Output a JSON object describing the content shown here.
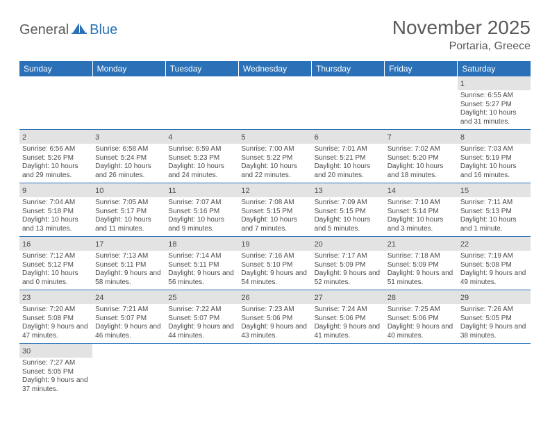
{
  "logo": {
    "part1": "General",
    "part2": "Blue"
  },
  "title": "November 2025",
  "location": "Portaria, Greece",
  "colors": {
    "header_bg": "#2a71b8",
    "header_text": "#ffffff",
    "daynum_bg": "#e3e3e3",
    "cell_border": "#2a71b8",
    "text": "#4a4a4a",
    "title_text": "#5a5a5a"
  },
  "weekdays": [
    "Sunday",
    "Monday",
    "Tuesday",
    "Wednesday",
    "Thursday",
    "Friday",
    "Saturday"
  ],
  "days": [
    {
      "n": 1,
      "sr": "6:55 AM",
      "ss": "5:27 PM",
      "dl": "10 hours and 31 minutes."
    },
    {
      "n": 2,
      "sr": "6:56 AM",
      "ss": "5:26 PM",
      "dl": "10 hours and 29 minutes."
    },
    {
      "n": 3,
      "sr": "6:58 AM",
      "ss": "5:24 PM",
      "dl": "10 hours and 26 minutes."
    },
    {
      "n": 4,
      "sr": "6:59 AM",
      "ss": "5:23 PM",
      "dl": "10 hours and 24 minutes."
    },
    {
      "n": 5,
      "sr": "7:00 AM",
      "ss": "5:22 PM",
      "dl": "10 hours and 22 minutes."
    },
    {
      "n": 6,
      "sr": "7:01 AM",
      "ss": "5:21 PM",
      "dl": "10 hours and 20 minutes."
    },
    {
      "n": 7,
      "sr": "7:02 AM",
      "ss": "5:20 PM",
      "dl": "10 hours and 18 minutes."
    },
    {
      "n": 8,
      "sr": "7:03 AM",
      "ss": "5:19 PM",
      "dl": "10 hours and 16 minutes."
    },
    {
      "n": 9,
      "sr": "7:04 AM",
      "ss": "5:18 PM",
      "dl": "10 hours and 13 minutes."
    },
    {
      "n": 10,
      "sr": "7:05 AM",
      "ss": "5:17 PM",
      "dl": "10 hours and 11 minutes."
    },
    {
      "n": 11,
      "sr": "7:07 AM",
      "ss": "5:16 PM",
      "dl": "10 hours and 9 minutes."
    },
    {
      "n": 12,
      "sr": "7:08 AM",
      "ss": "5:15 PM",
      "dl": "10 hours and 7 minutes."
    },
    {
      "n": 13,
      "sr": "7:09 AM",
      "ss": "5:15 PM",
      "dl": "10 hours and 5 minutes."
    },
    {
      "n": 14,
      "sr": "7:10 AM",
      "ss": "5:14 PM",
      "dl": "10 hours and 3 minutes."
    },
    {
      "n": 15,
      "sr": "7:11 AM",
      "ss": "5:13 PM",
      "dl": "10 hours and 1 minute."
    },
    {
      "n": 16,
      "sr": "7:12 AM",
      "ss": "5:12 PM",
      "dl": "10 hours and 0 minutes."
    },
    {
      "n": 17,
      "sr": "7:13 AM",
      "ss": "5:11 PM",
      "dl": "9 hours and 58 minutes."
    },
    {
      "n": 18,
      "sr": "7:14 AM",
      "ss": "5:11 PM",
      "dl": "9 hours and 56 minutes."
    },
    {
      "n": 19,
      "sr": "7:16 AM",
      "ss": "5:10 PM",
      "dl": "9 hours and 54 minutes."
    },
    {
      "n": 20,
      "sr": "7:17 AM",
      "ss": "5:09 PM",
      "dl": "9 hours and 52 minutes."
    },
    {
      "n": 21,
      "sr": "7:18 AM",
      "ss": "5:09 PM",
      "dl": "9 hours and 51 minutes."
    },
    {
      "n": 22,
      "sr": "7:19 AM",
      "ss": "5:08 PM",
      "dl": "9 hours and 49 minutes."
    },
    {
      "n": 23,
      "sr": "7:20 AM",
      "ss": "5:08 PM",
      "dl": "9 hours and 47 minutes."
    },
    {
      "n": 24,
      "sr": "7:21 AM",
      "ss": "5:07 PM",
      "dl": "9 hours and 46 minutes."
    },
    {
      "n": 25,
      "sr": "7:22 AM",
      "ss": "5:07 PM",
      "dl": "9 hours and 44 minutes."
    },
    {
      "n": 26,
      "sr": "7:23 AM",
      "ss": "5:06 PM",
      "dl": "9 hours and 43 minutes."
    },
    {
      "n": 27,
      "sr": "7:24 AM",
      "ss": "5:06 PM",
      "dl": "9 hours and 41 minutes."
    },
    {
      "n": 28,
      "sr": "7:25 AM",
      "ss": "5:06 PM",
      "dl": "9 hours and 40 minutes."
    },
    {
      "n": 29,
      "sr": "7:26 AM",
      "ss": "5:05 PM",
      "dl": "9 hours and 38 minutes."
    },
    {
      "n": 30,
      "sr": "7:27 AM",
      "ss": "5:05 PM",
      "dl": "9 hours and 37 minutes."
    }
  ],
  "labels": {
    "sunrise": "Sunrise:",
    "sunset": "Sunset:",
    "daylight": "Daylight:"
  },
  "first_weekday_index": 6
}
